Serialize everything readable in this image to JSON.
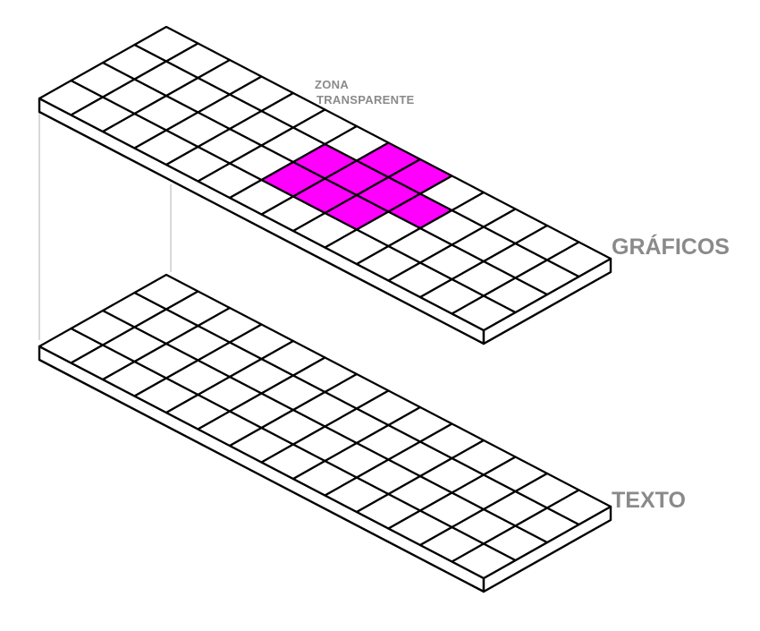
{
  "labels": {
    "transparent_zone_line1": "ZONA",
    "transparent_zone_line2": "TRANSPARENTE",
    "graphics_layer": "GRÁFICOS",
    "text_layer": "TEXTO"
  },
  "colors": {
    "grid_line": "#000000",
    "cell_fill": "#ffffff",
    "highlight": "#ff00ff",
    "label": "#8a8a8a"
  },
  "grid": {
    "rows": 4,
    "columns": 14,
    "highlighted_cells": [
      [
        1,
        6
      ],
      [
        2,
        6
      ],
      [
        1,
        7
      ],
      [
        2,
        7
      ],
      [
        3,
        7
      ],
      [
        1,
        8
      ],
      [
        2,
        8
      ],
      [
        3,
        8
      ],
      [
        2,
        9
      ]
    ]
  }
}
